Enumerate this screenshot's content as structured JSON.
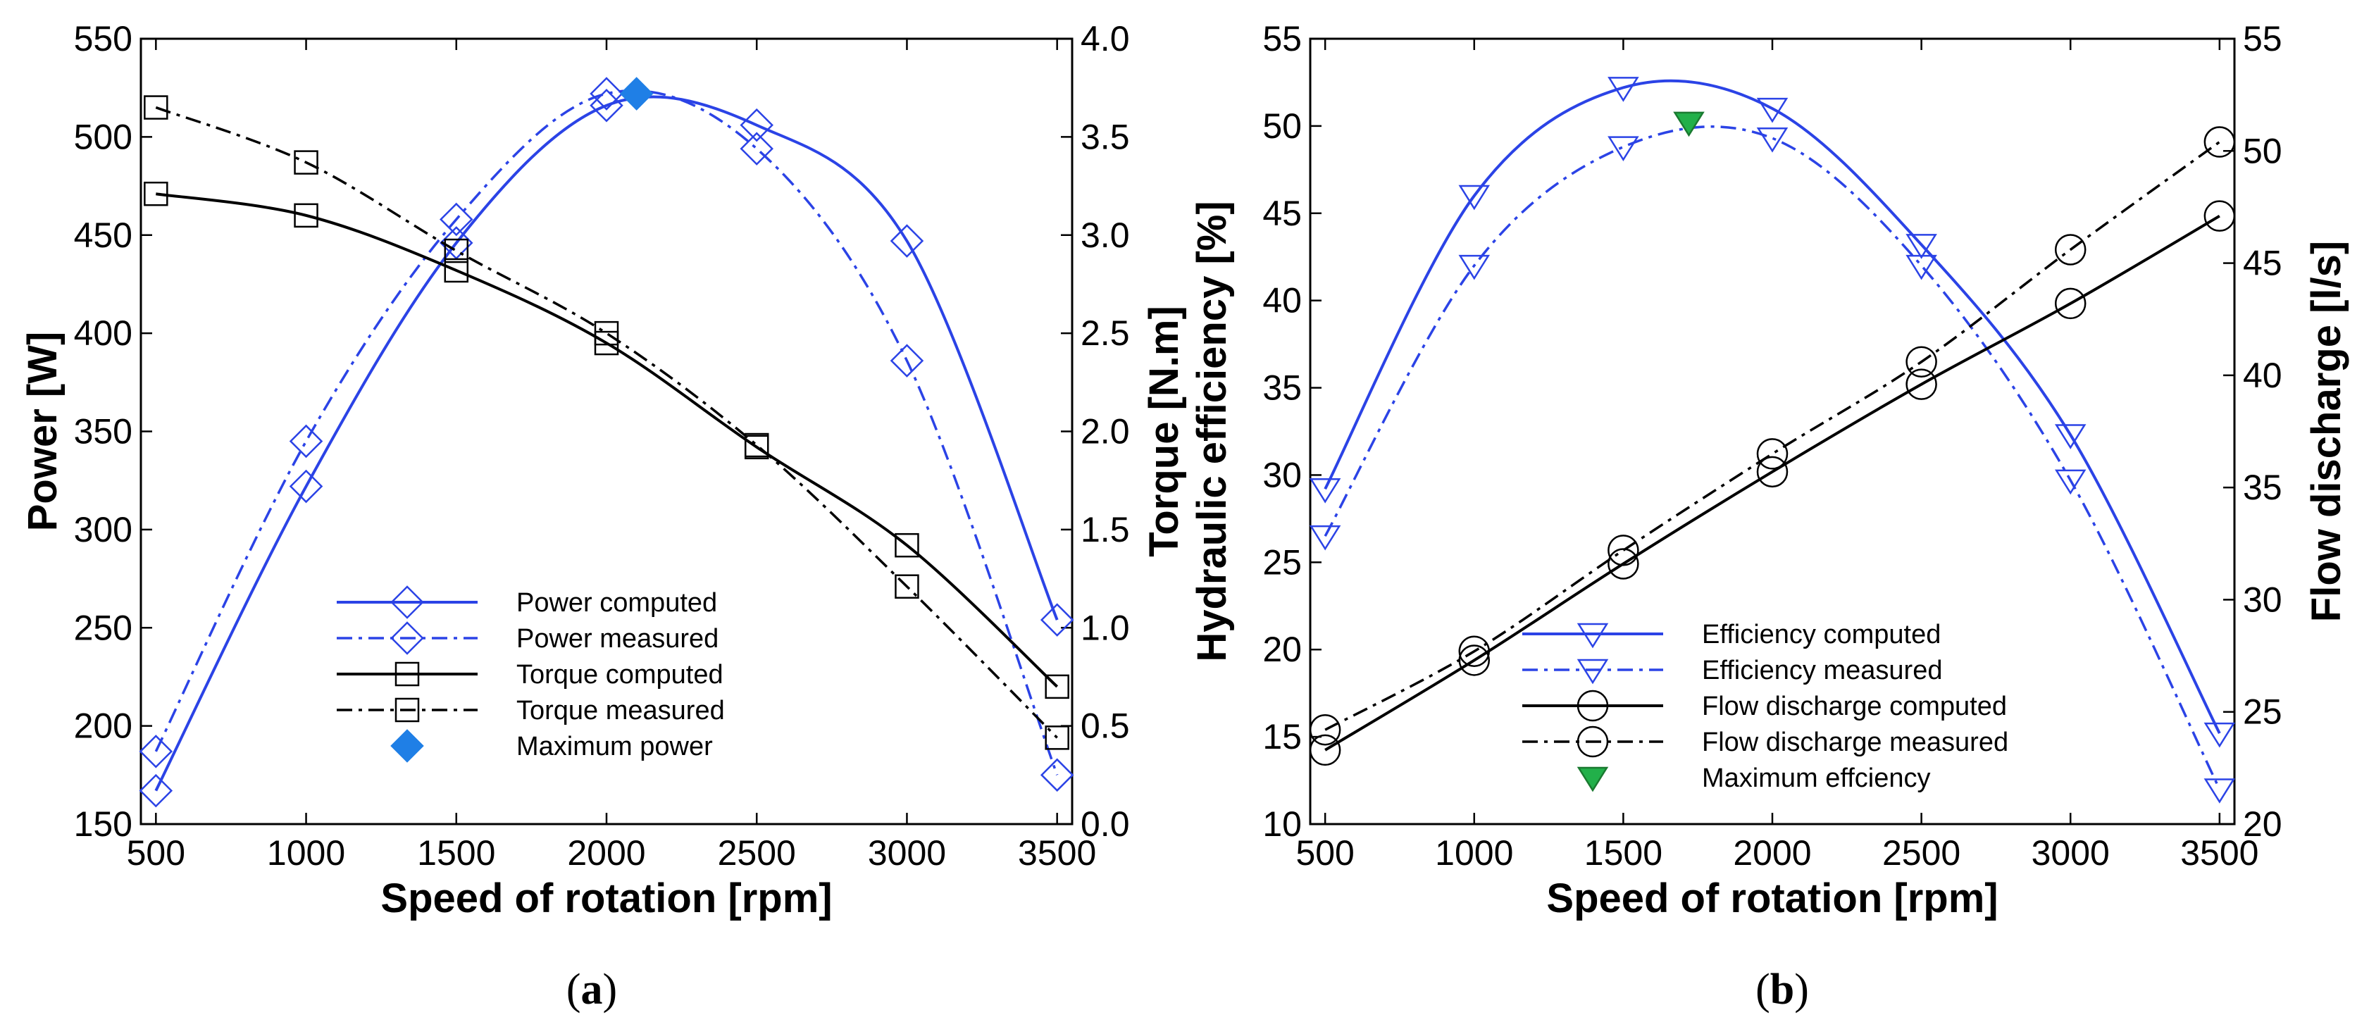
{
  "chart_data": [
    {
      "type": "line",
      "caption": "a",
      "xlabel": "Speed of rotation [rpm]",
      "ylabel_left": "Power [W]",
      "ylabel_right": "Torque [N.m]",
      "xlim": [
        450,
        3550
      ],
      "ylim_left": [
        150,
        550
      ],
      "ylim_right": [
        0.0,
        4.0
      ],
      "x_ticks": [
        500,
        1000,
        1500,
        2000,
        2500,
        3000,
        3500
      ],
      "y_left_ticks": [
        150,
        200,
        250,
        300,
        350,
        400,
        450,
        500,
        550
      ],
      "y_right_ticks": [
        "0.0",
        "0.5",
        "1.0",
        "1.5",
        "2.0",
        "2.5",
        "3.0",
        "3.5",
        "4.0"
      ],
      "legend_position": "bottom-center",
      "series": [
        {
          "name": "Power computed",
          "axis": "left",
          "color": "#2b43e6",
          "line": "solid",
          "marker": "diamond",
          "x": [
            500,
            1000,
            1500,
            2000,
            2500,
            3000,
            3500
          ],
          "y": [
            167,
            322,
            446,
            516,
            506,
            447,
            254
          ]
        },
        {
          "name": "Power measured",
          "axis": "left",
          "color": "#2b43e6",
          "line": "dashdot",
          "marker": "diamond",
          "x": [
            500,
            1000,
            1500,
            2000,
            2500,
            3000,
            3500
          ],
          "y": [
            187,
            345,
            458,
            522,
            494,
            386,
            175
          ]
        },
        {
          "name": "Torque computed",
          "axis": "right",
          "color": "#000000",
          "line": "solid",
          "marker": "square",
          "x": [
            500,
            1000,
            1500,
            2000,
            2500,
            3000,
            3500
          ],
          "y": [
            3.21,
            3.1,
            2.82,
            2.45,
            1.92,
            1.42,
            0.7
          ]
        },
        {
          "name": "Torque measured",
          "axis": "right",
          "color": "#000000",
          "line": "dashdot",
          "marker": "square",
          "x": [
            500,
            1000,
            1500,
            2000,
            2500,
            3000,
            3500
          ],
          "y": [
            3.65,
            3.37,
            2.92,
            2.5,
            1.93,
            1.21,
            0.44
          ]
        },
        {
          "name": "Maximum power",
          "axis": "left",
          "color": "#1f7fe6",
          "line": "none",
          "marker": "filled-diamond",
          "x": [
            2100
          ],
          "y": [
            522
          ]
        }
      ]
    },
    {
      "type": "line",
      "caption": "b",
      "xlabel": "Speed of rotation [rpm]",
      "ylabel_left": "Hydraulic efficiency [%]",
      "ylabel_right": "Flow discharge [l/s]",
      "xlim": [
        450,
        3550
      ],
      "ylim_left": [
        10,
        55
      ],
      "ylim_right": [
        20,
        55
      ],
      "x_ticks": [
        500,
        1000,
        1500,
        2000,
        2500,
        3000,
        3500
      ],
      "y_left_ticks": [
        10,
        15,
        20,
        25,
        30,
        35,
        40,
        45,
        50,
        55
      ],
      "y_right_ticks": [
        20,
        25,
        30,
        35,
        40,
        45,
        50,
        55
      ],
      "legend_position": "bottom-center",
      "series": [
        {
          "name": "Efficiency computed",
          "axis": "left",
          "color": "#2b43e6",
          "line": "solid",
          "marker": "triangle-down",
          "x": [
            500,
            1000,
            1500,
            2000,
            2500,
            3000,
            3500
          ],
          "y": [
            29.2,
            46,
            52.2,
            51,
            43.2,
            32.3,
            15.2
          ]
        },
        {
          "name": "Efficiency measured",
          "axis": "left",
          "color": "#2b43e6",
          "line": "dashdot",
          "marker": "triangle-down",
          "x": [
            500,
            1000,
            1500,
            2000,
            2500,
            3000,
            3500
          ],
          "y": [
            26.5,
            42,
            48.8,
            49.3,
            42,
            29.7,
            12
          ]
        },
        {
          "name": "Flow discharge computed",
          "axis": "right",
          "color": "#000000",
          "line": "solid",
          "marker": "circle",
          "x": [
            500,
            1000,
            1500,
            2000,
            2500,
            3000,
            3500
          ],
          "y": [
            23.3,
            27.3,
            31.6,
            35.7,
            39.6,
            43.2,
            47.1
          ]
        },
        {
          "name": "Flow discharge measured",
          "axis": "right",
          "color": "#000000",
          "line": "dashdot",
          "marker": "circle",
          "x": [
            500,
            1000,
            1500,
            2000,
            2500,
            3000,
            3500
          ],
          "y": [
            24.2,
            27.7,
            32.2,
            36.5,
            40.6,
            45.6,
            50.4
          ]
        },
        {
          "name": "Maximum effciency",
          "axis": "left",
          "color": "#22b04a",
          "line": "none",
          "marker": "filled-triangle-down",
          "x": [
            1720
          ],
          "y": [
            50.2
          ]
        }
      ]
    }
  ]
}
